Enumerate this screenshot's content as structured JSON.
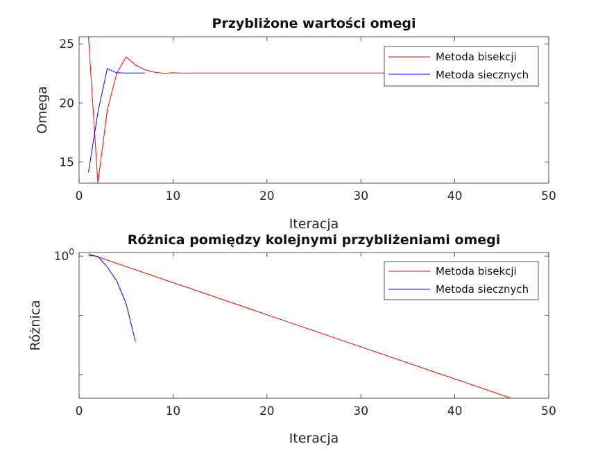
{
  "chart_data": [
    {
      "type": "line",
      "title": "Przybliżone wartości omegi",
      "xlabel": "Iteracja",
      "ylabel": "Omega",
      "xlim": [
        0,
        50
      ],
      "ylim": [
        13.2,
        25.6
      ],
      "xticks": [
        0,
        10,
        20,
        30,
        40,
        50
      ],
      "xtick_labels": [
        "0",
        "10",
        "20",
        "30",
        "40",
        "50"
      ],
      "yticks": [
        15,
        20,
        25
      ],
      "ytick_labels": [
        "15",
        "20",
        "25"
      ],
      "yscale": "linear",
      "legend_position": "top-right",
      "series": [
        {
          "name": "Metoda bisekcji",
          "color": "#ff0000",
          "x": [
            1,
            2,
            3,
            4,
            5,
            6,
            7,
            8,
            9,
            10,
            11,
            12,
            13,
            20,
            30,
            40,
            46
          ],
          "y": [
            25.6,
            13.2,
            19.4,
            22.5,
            23.9,
            23.2,
            22.8,
            22.6,
            22.5,
            22.55,
            22.52,
            22.53,
            22.53,
            22.53,
            22.53,
            22.53,
            22.53
          ]
        },
        {
          "name": "Metoda siecznych",
          "color": "#0000ff",
          "x": [
            1,
            2,
            3,
            4,
            5,
            6,
            7
          ],
          "y": [
            14.1,
            19.2,
            22.9,
            22.55,
            22.53,
            22.53,
            22.53
          ]
        }
      ]
    },
    {
      "type": "line",
      "title": "Różnica pomiędzy kolejnymi przybliżeniami omegi",
      "xlabel": "Iteracja",
      "ylabel": "Różnica",
      "xlim": [
        0,
        50
      ],
      "xticks": [
        0,
        10,
        20,
        30,
        40,
        50
      ],
      "xtick_labels": [
        "0",
        "10",
        "20",
        "30",
        "40",
        "50"
      ],
      "yscale": "log",
      "ylim": [
        1e-12,
        2
      ],
      "yticks": [
        1,
        1e-05,
        1e-10
      ],
      "ytick_labels": [
        {
          "base": "10",
          "exp": "0"
        },
        {
          "base": "",
          "exp": ""
        },
        {
          "base": "",
          "exp": ""
        }
      ],
      "legend_position": "top-right",
      "series": [
        {
          "name": "Metoda bisekcji",
          "color": "#ff0000",
          "x": [
            1,
            46
          ],
          "y": [
            1.6,
            1e-12
          ]
        },
        {
          "name": "Metoda siecznych",
          "color": "#0000ff",
          "x": [
            1,
            2,
            3,
            4,
            5,
            6
          ],
          "y": [
            1.15,
            0.95,
            0.12,
            0.008,
            0.0001,
            6e-08
          ]
        }
      ]
    }
  ]
}
